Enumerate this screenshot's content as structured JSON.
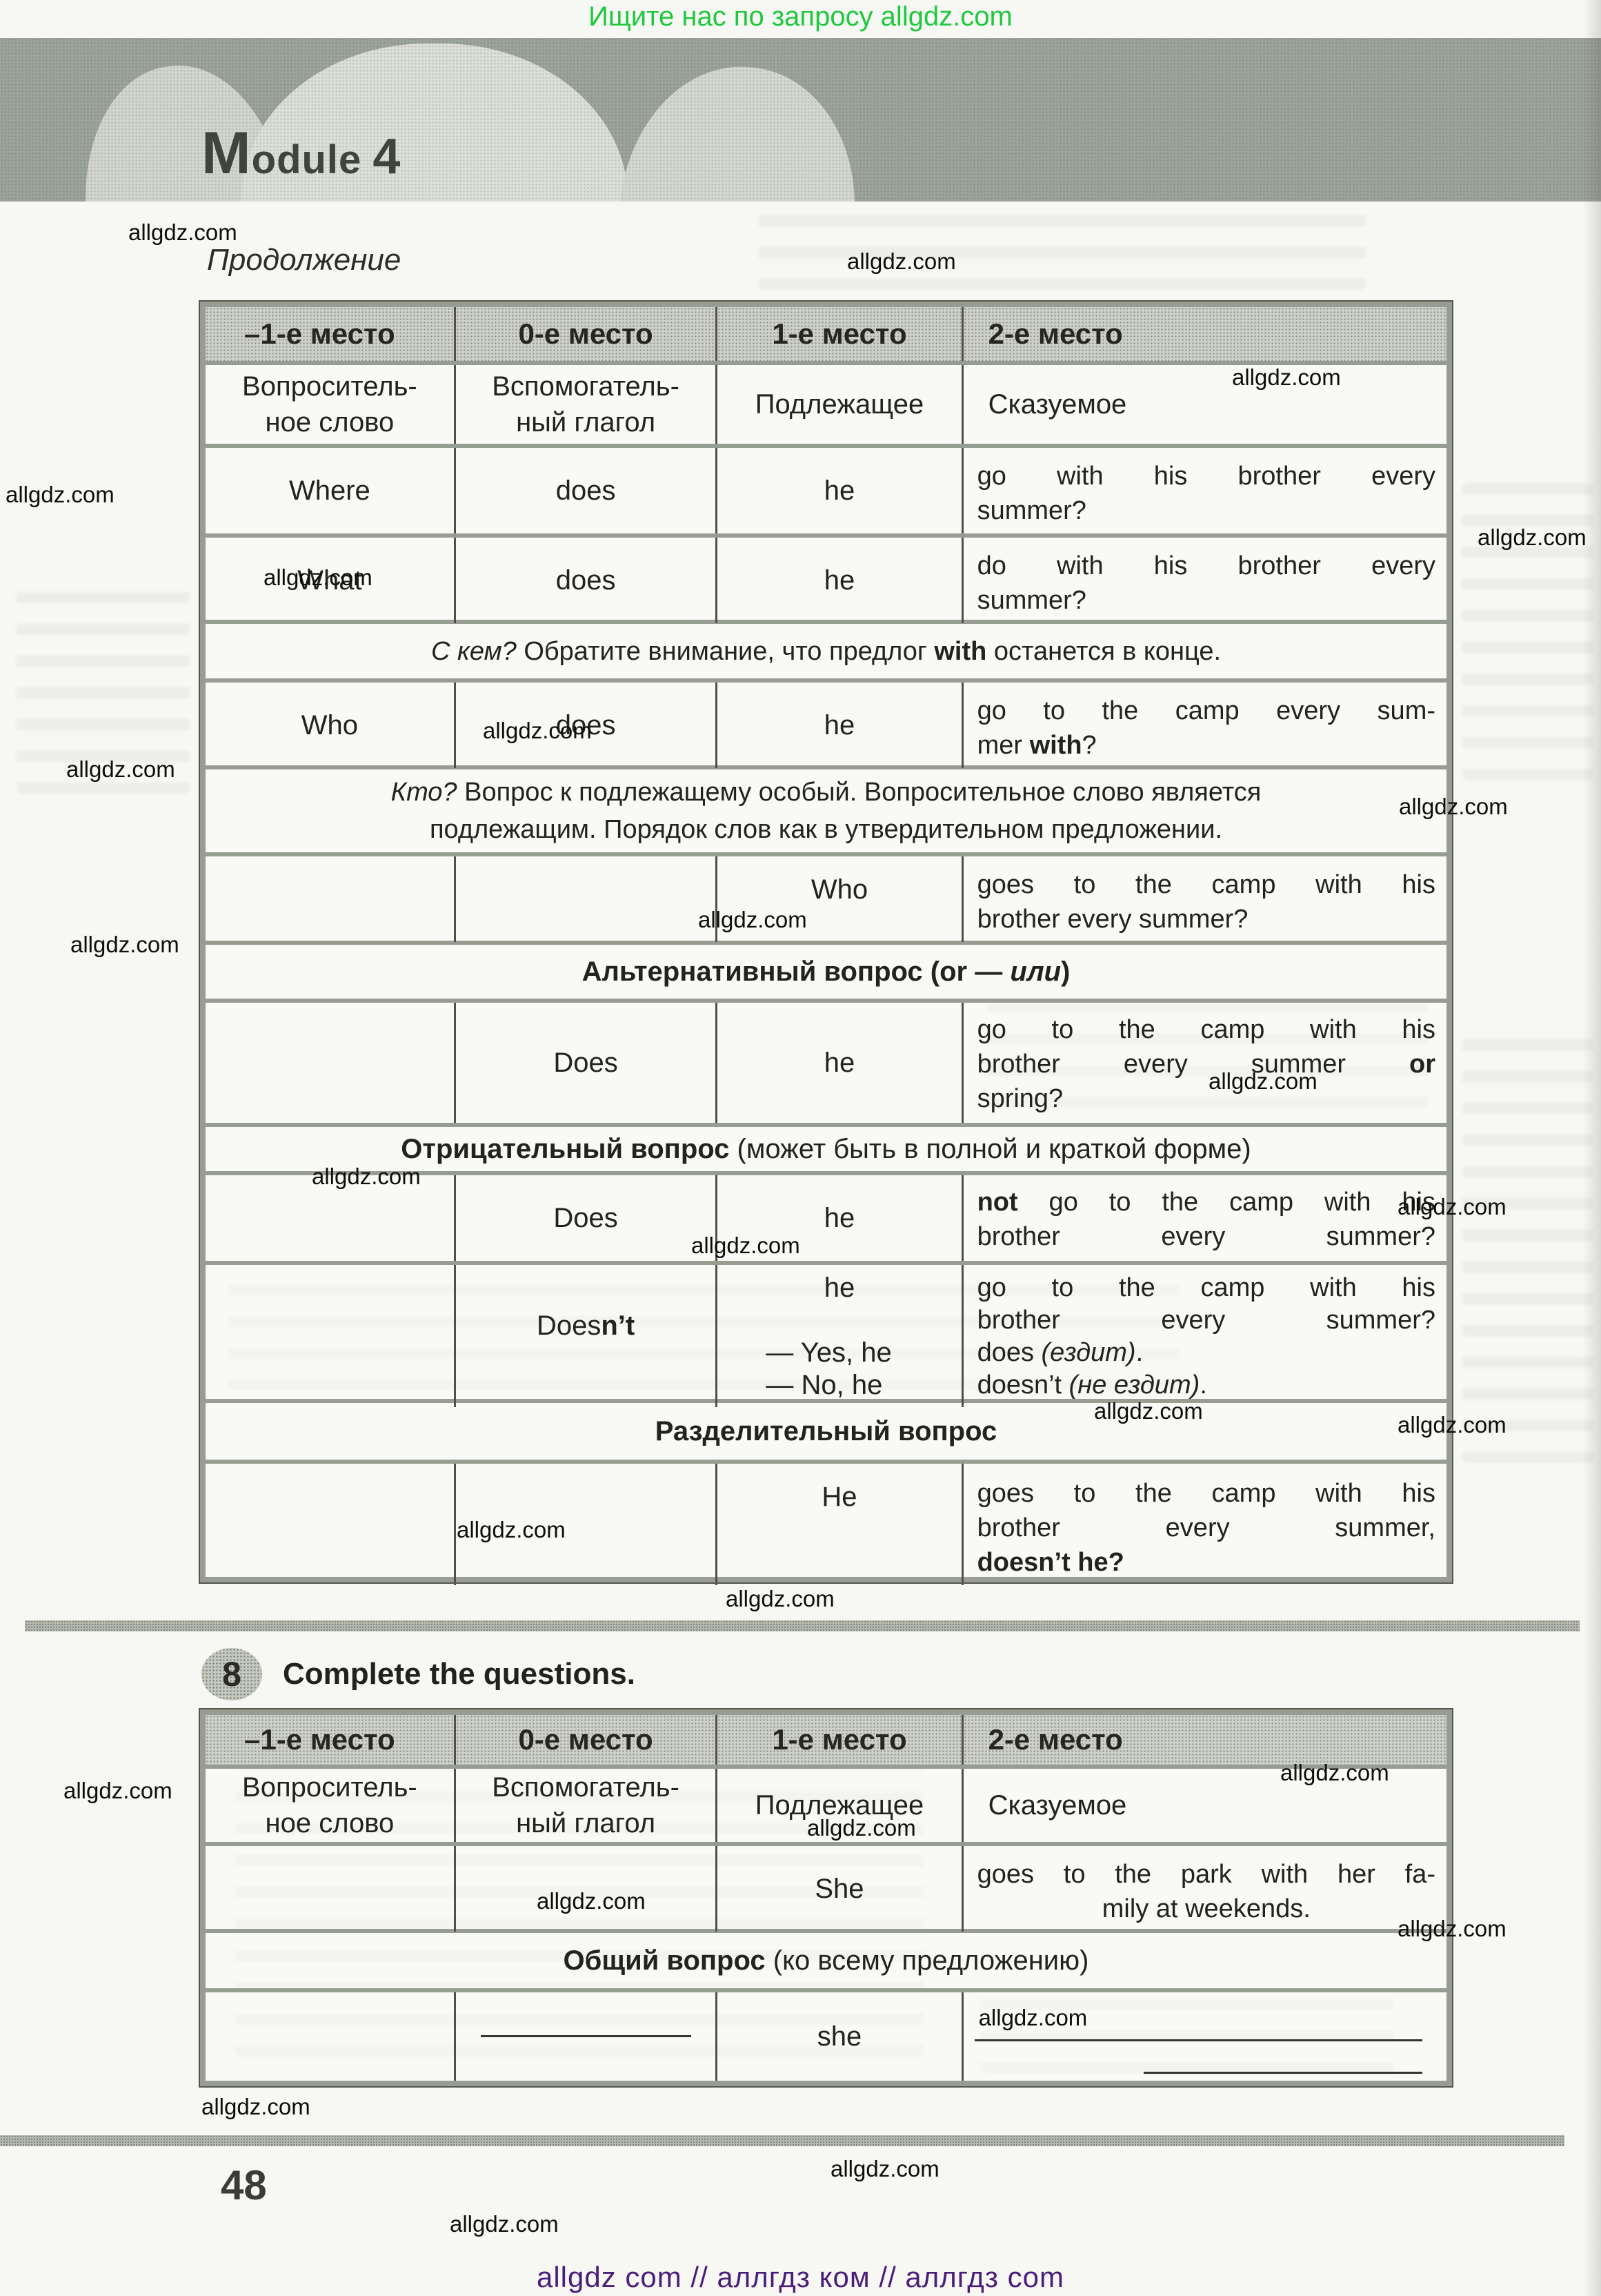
{
  "page": {
    "banner": "Ищите нас по запросу allgdz.com",
    "module_word": "Module",
    "module_number": "4",
    "continuation": "Продолжение",
    "watermark": "allgdz.com",
    "page_number": "48",
    "footer": "allgdz com  //  аллгдз ком  //  аллгдз com",
    "colors": {
      "banner_green": "#1fc93e",
      "footer_purple": "#4a1d7c",
      "band_gray": "#9ca39a",
      "header_cell_gray": "#ced1ca",
      "border_gray": "#989d93",
      "line_dark": "#504f49",
      "text_dark": "#22221f"
    }
  },
  "exercise": {
    "number": "8",
    "title": "Complete the questions."
  },
  "table_headers": [
    "–1-е место",
    "0-е место",
    "1-е место",
    "2-е место"
  ],
  "table_labels": [
    "Вопроситель-\nное слово",
    "Вспомогатель-\nный глагол",
    "Подлежащее",
    "Сказуемое"
  ],
  "t1": {
    "where": {
      "c1": "Where",
      "c2": "does",
      "c3": "he",
      "c4": [
        {
          "a": "j",
          "s": [
            "go with his brother every"
          ]
        },
        {
          "a": "l",
          "s": [
            "summer?"
          ]
        }
      ]
    },
    "what": {
      "c1": "What",
      "c2": "does",
      "c3": "he",
      "c4": [
        {
          "a": "j",
          "s": [
            "do with his brother every"
          ]
        },
        {
          "a": "l",
          "s": [
            "summer?"
          ]
        }
      ]
    },
    "note_skem": [
      {
        "a": "c",
        "s": [
          {
            "t": "С кем?",
            "st": "i"
          },
          {
            "t": " Обратите внимание, что предлог "
          },
          {
            "t": "with",
            "st": "b"
          },
          {
            "t": " останется в конце."
          }
        ]
      }
    ],
    "who": {
      "c1": "Who",
      "c2": "does",
      "c3": "he",
      "c4": [
        {
          "a": "j",
          "s": [
            "go to the camp every sum-"
          ]
        },
        {
          "a": "l",
          "s": [
            "mer ",
            {
              "t": "with",
              "st": "b"
            },
            {
              "t": "?"
            }
          ]
        }
      ]
    },
    "note_kto": [
      {
        "a": "c",
        "s": [
          {
            "t": "Кто?",
            "st": "i"
          },
          {
            "t": " Вопрос к подлежащему особый. Вопросительное слово является"
          }
        ]
      },
      {
        "a": "c",
        "s": [
          "подлежащим. Порядок слов как в утвердительном предложении."
        ]
      }
    ],
    "subj": {
      "c3": "Who",
      "c4": [
        {
          "a": "j",
          "s": [
            "goes to the camp with his"
          ]
        },
        {
          "a": "l",
          "s": [
            "brother every summer?"
          ]
        }
      ]
    },
    "sec_alt": [
      {
        "a": "c",
        "s": [
          {
            "t": "Альтернативный вопрос (",
            "st": "b"
          },
          {
            "t": "or",
            "st": "b"
          },
          {
            "t": " — ",
            "st": "b"
          },
          {
            "t": "или",
            "st": "bi"
          },
          {
            "t": ")",
            "st": "b"
          }
        ]
      }
    ],
    "alt": {
      "c2": "Does",
      "c3": "he",
      "c4": [
        {
          "a": "j",
          "s": [
            "go to the camp with his"
          ]
        },
        {
          "a": "j",
          "s": [
            "brother every summer ",
            {
              "t": "or",
              "st": "b"
            }
          ]
        },
        {
          "a": "l",
          "s": [
            "spring?"
          ]
        }
      ]
    },
    "sec_neg": [
      {
        "a": "c",
        "s": [
          {
            "t": "Отрицательный вопрос",
            "st": "b"
          },
          {
            "t": " (может быть в полной и краткой форме)"
          }
        ]
      }
    ],
    "neg_full": {
      "c2": "Does",
      "c3": "he",
      "c4": [
        {
          "a": "j",
          "s": [
            {
              "t": "not",
              "st": "b"
            },
            {
              "t": " go to the camp with his"
            }
          ]
        },
        {
          "a": "j",
          "s": [
            "brother every summer?"
          ]
        }
      ]
    },
    "neg_short": {
      "c2": [
        {
          "a": "c",
          "s": [
            "Does",
            {
              "t": "n’t",
              "st": "b"
            }
          ]
        }
      ],
      "c3": [
        {
          "a": "c",
          "s": [
            "he"
          ]
        },
        {
          "a": "l",
          "s": [
            " "
          ]
        },
        {
          "a": "l",
          "s": [
            "— Yes, he"
          ]
        },
        {
          "a": "l",
          "s": [
            "— No, he"
          ]
        }
      ],
      "c4": [
        {
          "a": "j",
          "s": [
            "go to the camp with his"
          ]
        },
        {
          "a": "j",
          "s": [
            "brother every summer?"
          ]
        },
        {
          "a": "l",
          "s": [
            "does ",
            {
              "t": "(ездит)",
              "st": "i"
            },
            {
              "t": "."
            }
          ]
        },
        {
          "a": "l",
          "s": [
            "doesn’t ",
            {
              "t": "(не ездит)",
              "st": "i"
            },
            {
              "t": "."
            }
          ]
        }
      ]
    },
    "sec_tag": [
      {
        "a": "c",
        "s": [
          {
            "t": "Разделительный вопрос",
            "st": "b"
          }
        ]
      }
    ],
    "tag": {
      "c3": "He",
      "c4": [
        {
          "a": "j",
          "s": [
            "goes to the camp with his"
          ]
        },
        {
          "a": "j",
          "s": [
            "brother every summer,"
          ]
        },
        {
          "a": "l",
          "s": [
            {
              "t": "doesn’t he?",
              "st": "b"
            }
          ]
        }
      ]
    }
  },
  "t2": {
    "she": {
      "c3": "She",
      "c4": [
        {
          "a": "j",
          "s": [
            "goes to the park with her fa-"
          ]
        },
        {
          "a": "c",
          "s": [
            "mily at weekends."
          ]
        }
      ]
    },
    "sec_common": [
      {
        "a": "c",
        "s": [
          {
            "t": "Общий вопрос",
            "st": "b"
          },
          {
            "t": " (ко всему предложению)"
          }
        ]
      }
    ],
    "blank": {
      "c3": "she"
    }
  }
}
